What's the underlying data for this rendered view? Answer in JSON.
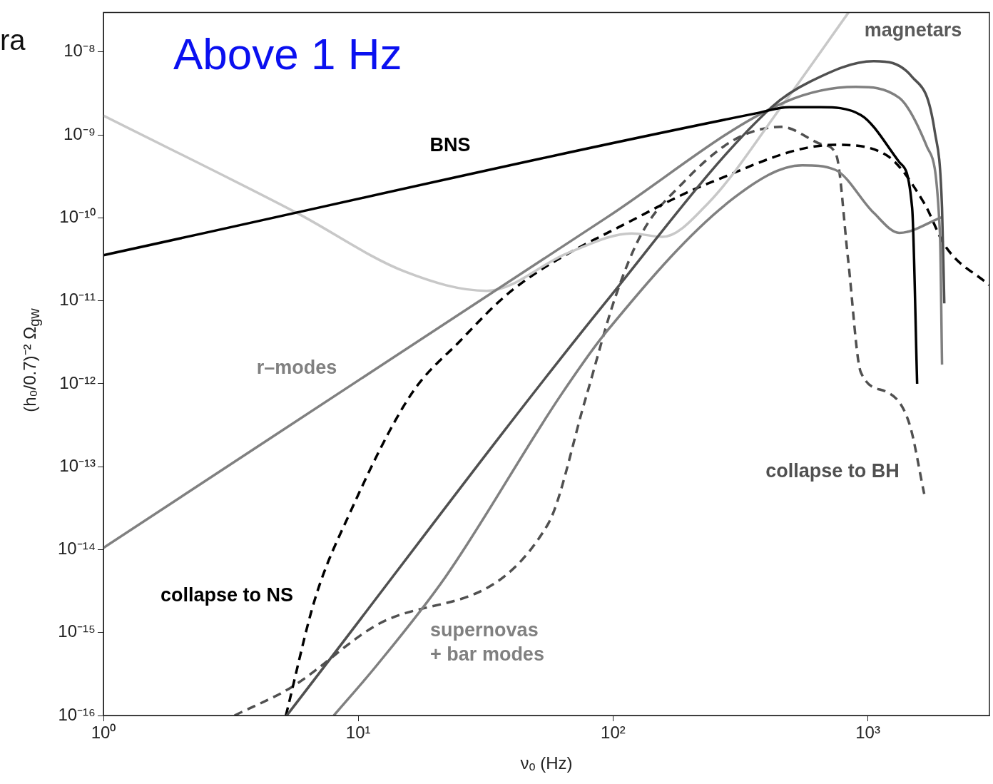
{
  "chart_data": {
    "type": "line",
    "xlabel": "νₒ (Hz)",
    "ylabel": "(h₀/0.7)⁻² Ω$_{gw}$",
    "log": "xy",
    "marker": "none",
    "xlim": [
      1,
      3000
    ],
    "ylim": [
      1e-16,
      3e-08
    ],
    "xticks": [
      {
        "value": 1,
        "label": "10⁰"
      },
      {
        "value": 10,
        "label": "10¹"
      },
      {
        "value": 100,
        "label": "10²"
      },
      {
        "value": 1000,
        "label": "10³"
      }
    ],
    "yticks": [
      {
        "value": 1e-16,
        "label": "10⁻¹⁶"
      },
      {
        "value": 1e-15,
        "label": "10⁻¹⁵"
      },
      {
        "value": 1e-14,
        "label": "10⁻¹⁴"
      },
      {
        "value": 1e-13,
        "label": "10⁻¹³"
      },
      {
        "value": 1e-12,
        "label": "10⁻¹²"
      },
      {
        "value": 1e-11,
        "label": "10⁻¹¹"
      },
      {
        "value": 1e-10,
        "label": "10⁻¹⁰"
      },
      {
        "value": 1e-09,
        "label": "10⁻⁹"
      },
      {
        "value": 1e-08,
        "label": "10⁻⁸"
      }
    ],
    "series": [
      {
        "color": "#000000",
        "line_style": "solid",
        "x": [
          1,
          364,
          492,
          650,
          938,
          1328,
          1492,
          1561
        ],
        "values": [
          3.55e-11,
          1.82e-09,
          2.16e-09,
          2.16e-09,
          1.74e-09,
          4.7e-10,
          1.32e-10,
          1e-12
        ]
      },
      {
        "color": "#505050",
        "line_style": "solid",
        "x": [
          5.24,
          94,
          419,
          594,
          1054,
          1492,
          1833,
          1955,
          1995
        ],
        "values": [
          1e-16,
          9.8e-12,
          2.16e-09,
          4.4e-09,
          7.75e-09,
          5e-09,
          1.07e-09,
          1.3e-10,
          9.3e-12
        ]
      },
      {
        "color": "#808080",
        "line_style": "solid",
        "x": [
          1,
          94,
          471,
          897,
          1328,
          1709,
          1918,
          1955
        ],
        "values": [
          1.05e-14,
          1e-10,
          2.48e-09,
          3.8e-09,
          2.8e-09,
          7.1e-10,
          6.6e-11,
          1.7e-12
        ]
      },
      {
        "color": "#808080",
        "line_style": "solid",
        "x": [
          8.02,
          11.8,
          21.9,
          62.6,
          94,
          298,
          553,
          744,
          1054,
          1328,
          1955
        ],
        "values": [
          1e-16,
          4e-16,
          4.6e-15,
          7.4e-13,
          4.2e-12,
          1.74e-10,
          4.3e-10,
          3.8e-10,
          1.15e-10,
          6.6e-11,
          1.02e-10
        ]
      },
      {
        "color": "#c8c8c8",
        "line_style": "solid",
        "x": [
          1,
          5.7,
          15.3,
          32,
          66.8,
          118.5,
          156,
          236,
          471,
          840
        ],
        "values": [
          1.71e-09,
          1.16e-10,
          2.24e-11,
          1.32e-11,
          3.8e-11,
          6.5e-11,
          5.9e-11,
          1.5e-10,
          2.48e-09,
          3e-08
        ]
      },
      {
        "color": "#000000",
        "line_style": "dashed",
        "x": [
          5.2,
          6.78,
          9.24,
          16.1,
          24.9,
          40.9,
          127,
          236,
          744,
          1183,
          1664,
          2009,
          2990
        ],
        "values": [
          1e-16,
          2.6e-15,
          2.7e-14,
          7.4e-13,
          3.2e-12,
          1.4e-11,
          1.04e-10,
          2.6e-10,
          7.6e-10,
          5.7e-10,
          1.5e-10,
          4.6e-11,
          1.55e-11
        ]
      },
      {
        "color": "#505050",
        "line_style": "dashed",
        "x": [
          3.27,
          5.48,
          11.8,
          55.4,
          78,
          102,
          130,
          187,
          298,
          458,
          667,
          752,
          836,
          938,
          1183,
          1455,
          1664
        ],
        "values": [
          1e-16,
          2.2e-16,
          1.23e-15,
          2e-14,
          6.6e-13,
          1.1e-11,
          6.6e-11,
          2.6e-10,
          8.7e-10,
          1.25e-09,
          7.6e-10,
          5.7e-10,
          3.2e-11,
          1.38e-12,
          8e-13,
          3.3e-13,
          4.7e-14
        ]
      }
    ],
    "annotations": [
      "ra",
      "Above 1 Hz",
      "BNS",
      "magnetars",
      "r–modes",
      "collapse to NS",
      "collapse to BH",
      "supernovas\n+ bar modes"
    ]
  }
}
